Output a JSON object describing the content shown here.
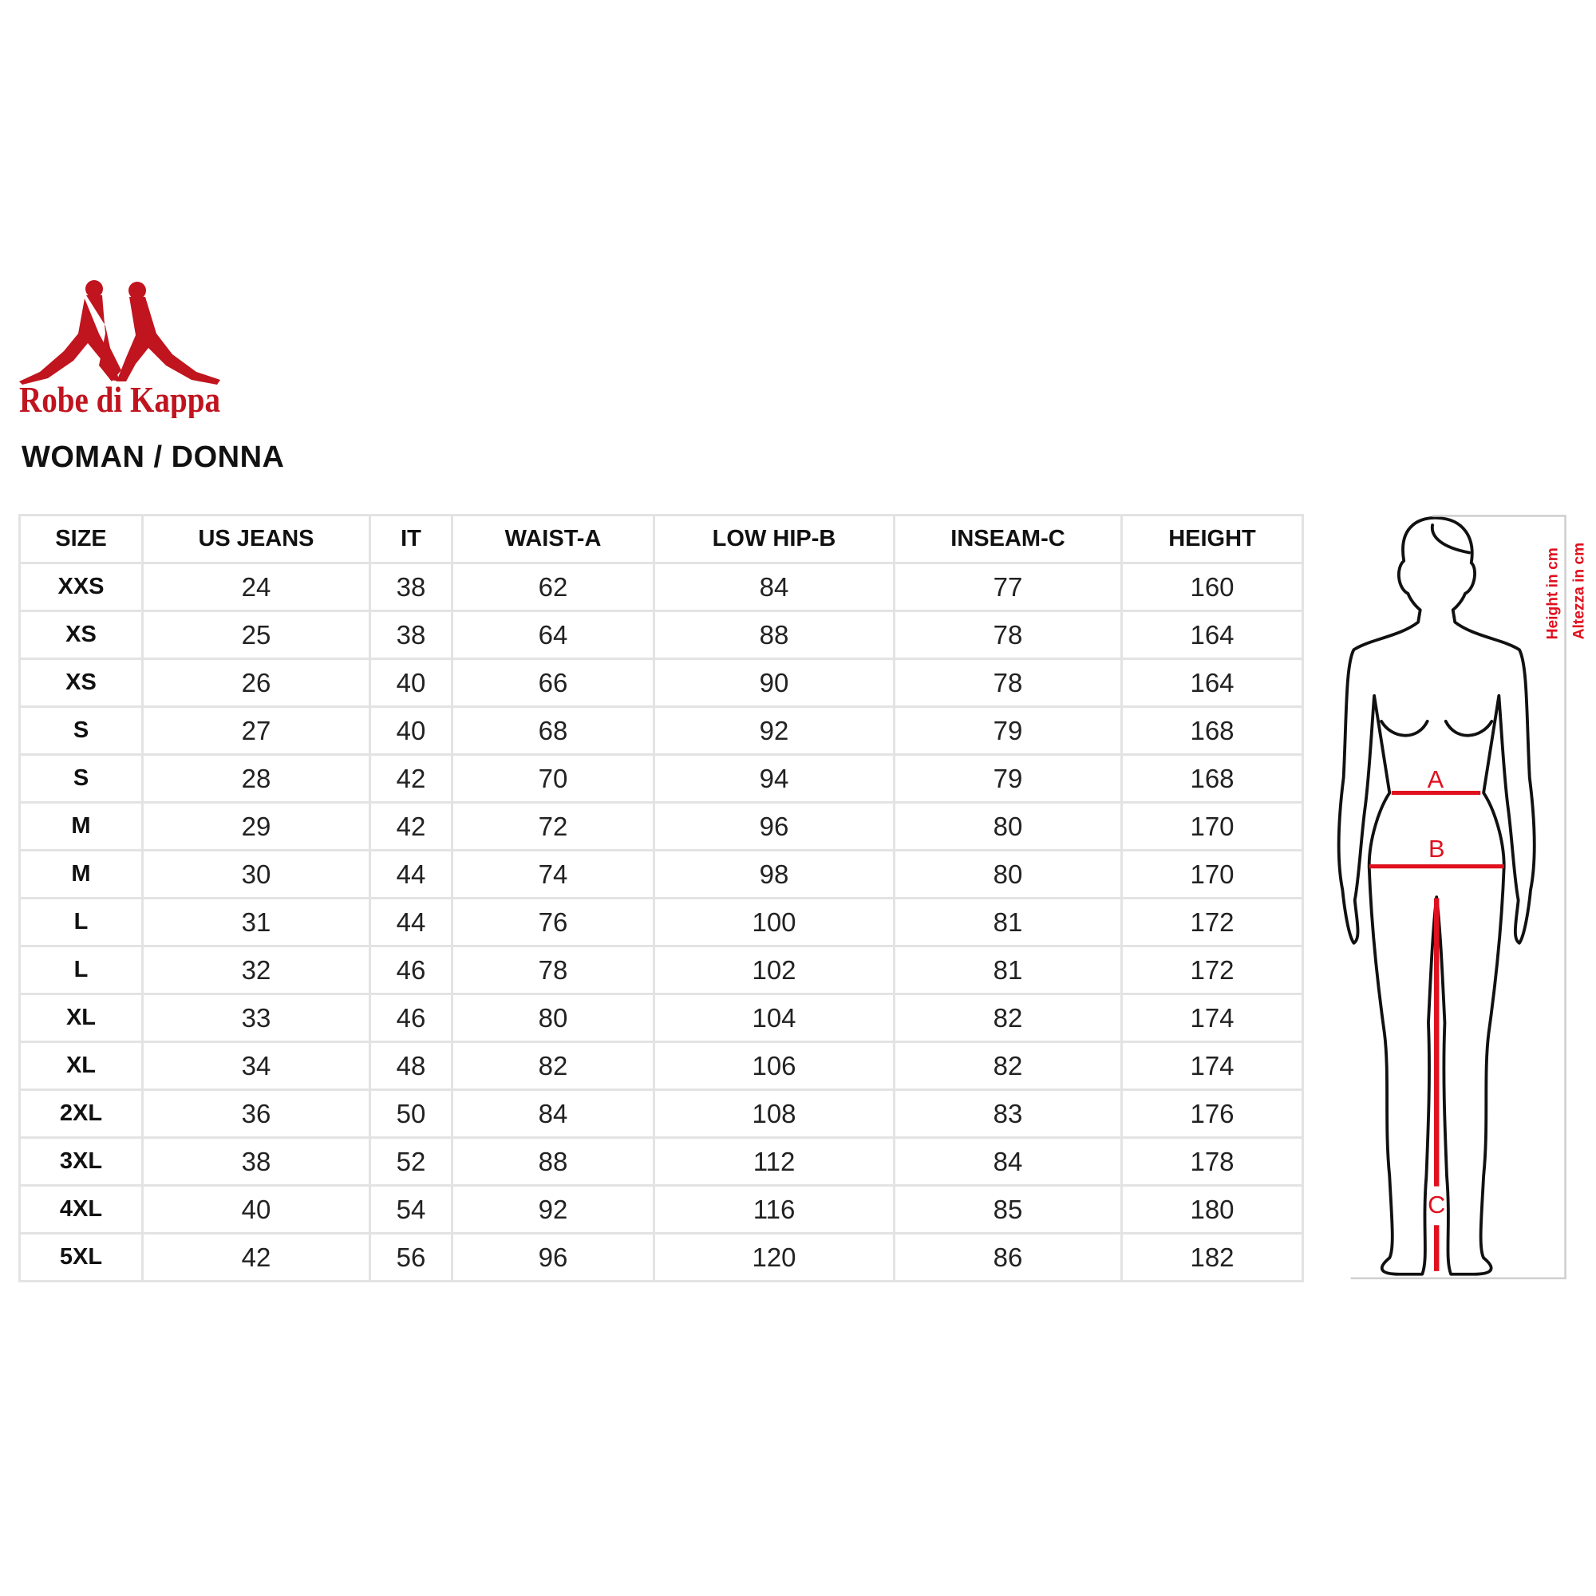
{
  "brand": {
    "logo_text": "Robe di Kappa",
    "color": "#c0141e"
  },
  "title": "WOMAN / DONNA",
  "table": {
    "headers": [
      "SIZE",
      "US JEANS",
      "IT",
      "WAIST-A",
      "LOW HIP-B",
      "INSEAM-C",
      "HEIGHT"
    ],
    "rows": [
      [
        "XXS",
        "24",
        "38",
        "62",
        "84",
        "77",
        "160"
      ],
      [
        "XS",
        "25",
        "38",
        "64",
        "88",
        "78",
        "164"
      ],
      [
        "XS",
        "26",
        "40",
        "66",
        "90",
        "78",
        "164"
      ],
      [
        "S",
        "27",
        "40",
        "68",
        "92",
        "79",
        "168"
      ],
      [
        "S",
        "28",
        "42",
        "70",
        "94",
        "79",
        "168"
      ],
      [
        "M",
        "29",
        "42",
        "72",
        "96",
        "80",
        "170"
      ],
      [
        "M",
        "30",
        "44",
        "74",
        "98",
        "80",
        "170"
      ],
      [
        "L",
        "31",
        "44",
        "76",
        "100",
        "81",
        "172"
      ],
      [
        "L",
        "32",
        "46",
        "78",
        "102",
        "81",
        "172"
      ],
      [
        "XL",
        "33",
        "46",
        "80",
        "104",
        "82",
        "174"
      ],
      [
        "XL",
        "34",
        "48",
        "82",
        "106",
        "82",
        "174"
      ],
      [
        "2XL",
        "36",
        "50",
        "84",
        "108",
        "83",
        "176"
      ],
      [
        "3XL",
        "38",
        "52",
        "88",
        "112",
        "84",
        "178"
      ],
      [
        "4XL",
        "40",
        "54",
        "92",
        "116",
        "85",
        "180"
      ],
      [
        "5XL",
        "42",
        "56",
        "96",
        "120",
        "86",
        "182"
      ]
    ]
  },
  "figure": {
    "labels": {
      "a": "A",
      "b": "B",
      "c": "C"
    },
    "height_en": "Height in cm",
    "height_it": "Altezza in cm",
    "accent": "#e0101e"
  }
}
